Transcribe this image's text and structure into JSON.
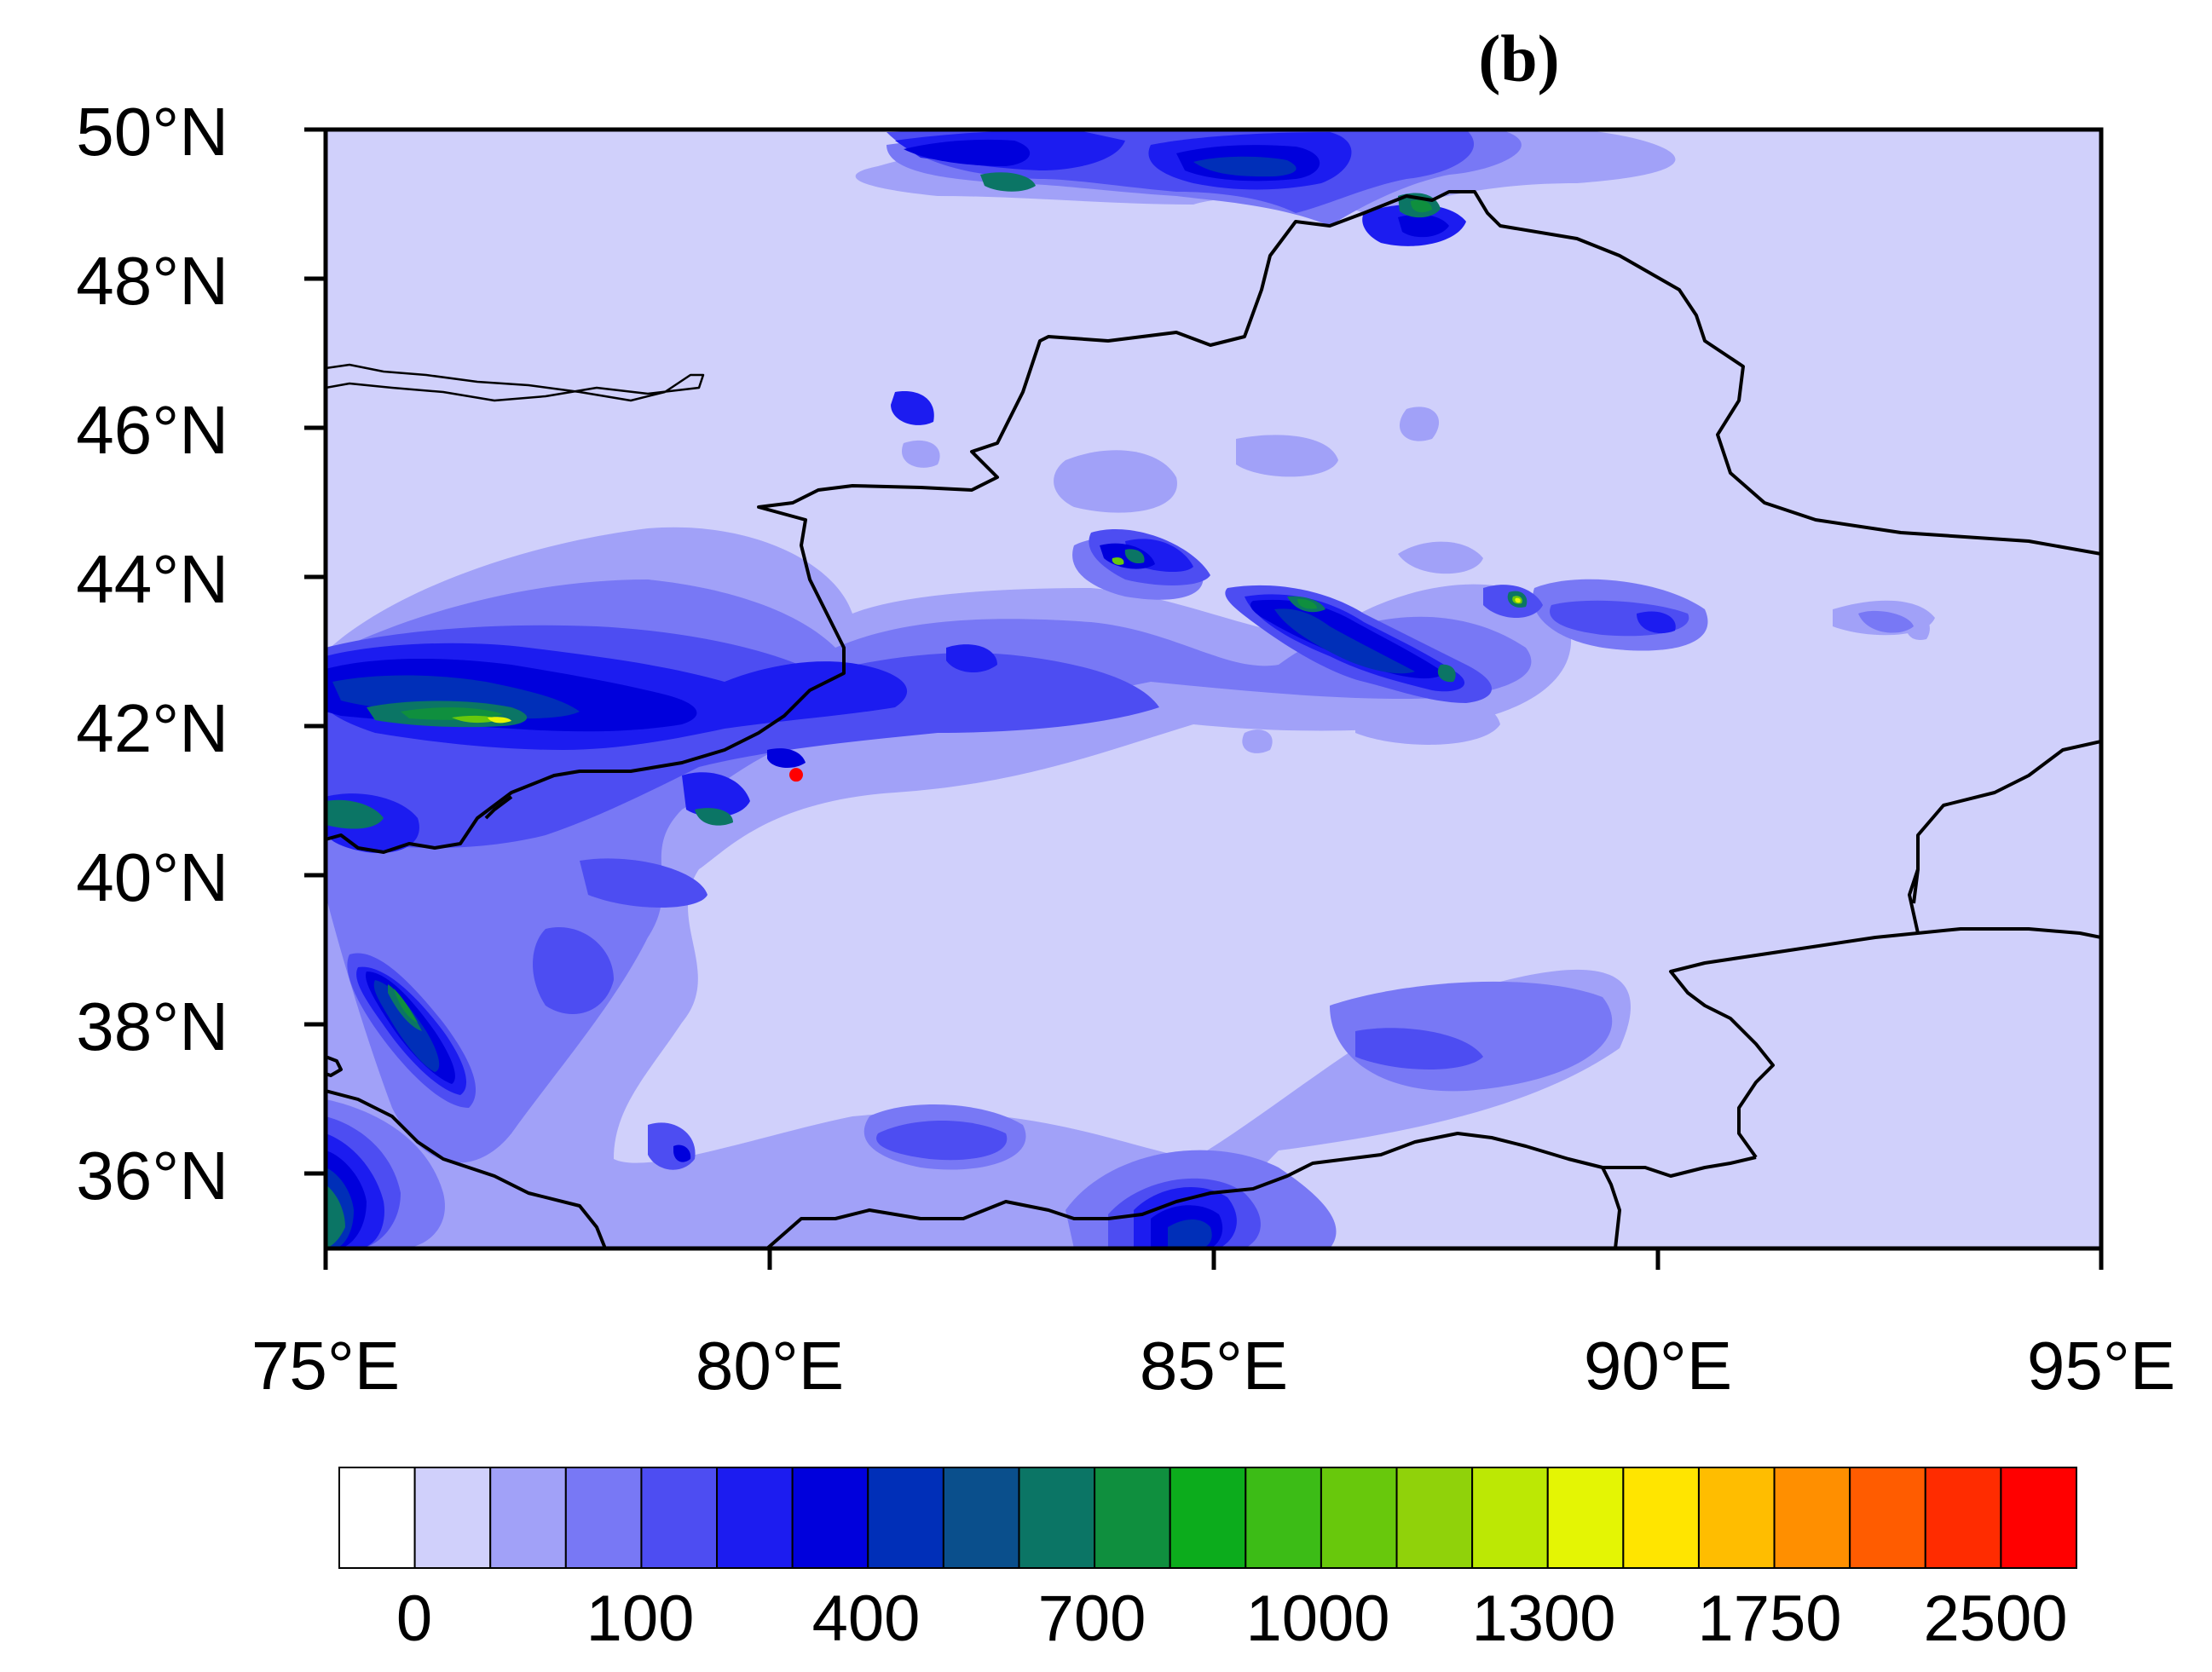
{
  "panel_label": "(b)",
  "map": {
    "lon_range": [
      75,
      95
    ],
    "lat_range": [
      35,
      50
    ],
    "x_tick_labels": [
      "75°E",
      "80°E",
      "85°E",
      "90°E",
      "95°E"
    ],
    "y_tick_labels": [
      "50°N",
      "48°N",
      "46°N",
      "44°N",
      "42°N",
      "40°N",
      "38°N",
      "36°N"
    ],
    "background_fill": "#d0d0fb",
    "boundary_color": "#000000",
    "station_marker": {
      "lon": 80.3,
      "lat": 41.35,
      "color": "#ff0000"
    }
  },
  "colorbar": {
    "colors": [
      "#ffffff",
      "#d0d0fb",
      "#a1a1f8",
      "#7878f5",
      "#4d4df2",
      "#1c1cf0",
      "#0000dc",
      "#002fb8",
      "#0a4f8c",
      "#0b7565",
      "#0f8f3e",
      "#0cac1c",
      "#3cbc16",
      "#68c80c",
      "#90d20a",
      "#bce804",
      "#e4f504",
      "#ffe500",
      "#ffbd00",
      "#ff8f00",
      "#ff5c00",
      "#ff2c00",
      "#ff0000"
    ],
    "labels": [
      "0",
      "100",
      "400",
      "700",
      "1000",
      "1300",
      "1750",
      "2500"
    ]
  }
}
